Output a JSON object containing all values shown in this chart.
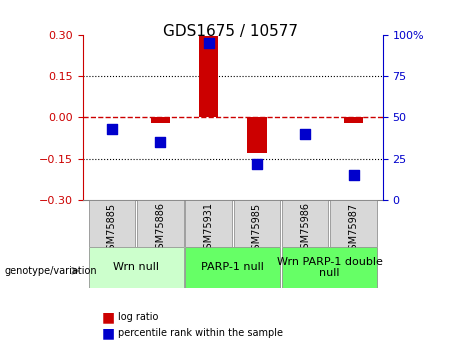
{
  "title": "GDS1675 / 10577",
  "samples": [
    "GSM75885",
    "GSM75886",
    "GSM75931",
    "GSM75985",
    "GSM75986",
    "GSM75987"
  ],
  "log_ratio": [
    0.0,
    -0.02,
    0.295,
    -0.13,
    0.0,
    -0.02
  ],
  "percentile_rank": [
    43,
    35,
    95,
    22,
    40,
    15
  ],
  "groups": [
    {
      "label": "Wrn null",
      "samples": [
        0,
        1
      ],
      "color": "#ccffcc"
    },
    {
      "label": "PARP-1 null",
      "samples": [
        2,
        3
      ],
      "color": "#66ff66"
    },
    {
      "label": "Wrn PARP-1 double\nnull",
      "samples": [
        4,
        5
      ],
      "color": "#66ff66"
    }
  ],
  "left_ylim": [
    -0.3,
    0.3
  ],
  "right_ylim": [
    0,
    100
  ],
  "left_yticks": [
    -0.3,
    -0.15,
    0,
    0.15,
    0.3
  ],
  "right_yticks": [
    0,
    25,
    50,
    75,
    100
  ],
  "hline_values": [
    0.15,
    0,
    -0.15
  ],
  "bar_color": "#cc0000",
  "dot_color": "#0000cc",
  "bar_width": 0.4,
  "dot_size": 60,
  "axis_left_color": "#cc0000",
  "axis_right_color": "#0000cc",
  "legend_log_ratio_color": "#cc0000",
  "legend_percentile_color": "#0000cc",
  "bg_color": "#ffffff",
  "plot_bg_color": "#ffffff",
  "genotype_label": "genotype/variation",
  "group_label_fontsize": 8,
  "sample_label_fontsize": 7
}
